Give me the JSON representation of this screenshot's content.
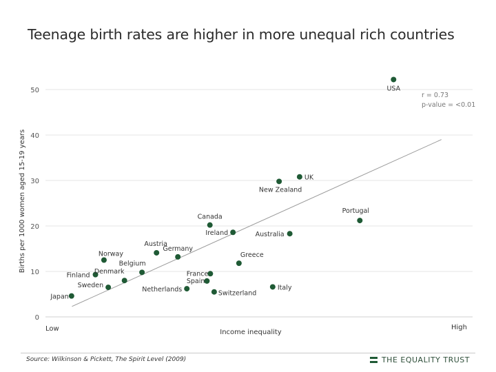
{
  "title": "Teenage birth rates are higher in more unequal rich countries",
  "source": "Source: Wilkinson & Pickett, The Spirit Level (2009)",
  "brand": "THE EQUALITY TRUST",
  "colors": {
    "point": "#1f5a35",
    "trendline": "#9a9a9a",
    "grid": "#e4e4e4"
  },
  "chart_data": {
    "type": "scatter",
    "xlabel": "Income inequality",
    "ylabel": "Births per 1000 women aged 15-19 years",
    "x_tick_labels": {
      "low": "Low",
      "high": "High"
    },
    "ylim": [
      0,
      55
    ],
    "yticks": [
      0,
      10,
      20,
      30,
      40,
      50
    ],
    "grid": true,
    "stats": {
      "r": "r = 0.73",
      "p": "p-value = <0.01"
    },
    "trendline": {
      "x": [
        0.062,
        0.927
      ],
      "y": [
        2.3,
        39.0
      ]
    },
    "points": [
      {
        "label": "USA",
        "x": 0.815,
        "y": 52.2
      },
      {
        "label": "UK",
        "x": 0.595,
        "y": 30.8
      },
      {
        "label": "New Zealand",
        "x": 0.547,
        "y": 29.8
      },
      {
        "label": "Portugal",
        "x": 0.736,
        "y": 21.2
      },
      {
        "label": "Canada",
        "x": 0.385,
        "y": 20.2
      },
      {
        "label": "Ireland",
        "x": 0.439,
        "y": 18.6
      },
      {
        "label": "Australia",
        "x": 0.572,
        "y": 18.3
      },
      {
        "label": "Austria",
        "x": 0.26,
        "y": 14.1
      },
      {
        "label": "Germany",
        "x": 0.31,
        "y": 13.2
      },
      {
        "label": "Norway",
        "x": 0.137,
        "y": 12.5
      },
      {
        "label": "Greece",
        "x": 0.453,
        "y": 11.8
      },
      {
        "label": "Belgium",
        "x": 0.226,
        "y": 9.8
      },
      {
        "label": "Finland",
        "x": 0.117,
        "y": 9.3
      },
      {
        "label": "France",
        "x": 0.386,
        "y": 9.5
      },
      {
        "label": "Denmark",
        "x": 0.185,
        "y": 8.0
      },
      {
        "label": "Spain",
        "x": 0.378,
        "y": 7.9
      },
      {
        "label": "Sweden",
        "x": 0.147,
        "y": 6.5
      },
      {
        "label": "Italy",
        "x": 0.532,
        "y": 6.6
      },
      {
        "label": "Netherlands",
        "x": 0.331,
        "y": 6.2
      },
      {
        "label": "Switzerland",
        "x": 0.395,
        "y": 5.5
      },
      {
        "label": "Japan",
        "x": 0.061,
        "y": 4.6
      }
    ]
  }
}
